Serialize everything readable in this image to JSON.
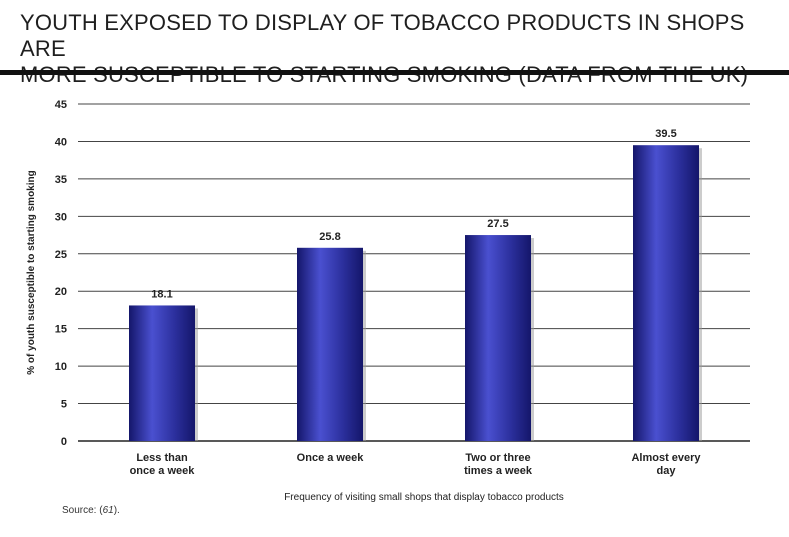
{
  "title_line1": "YOUTH EXPOSED TO DISPLAY OF TOBACCO PRODUCTS IN SHOPS ARE",
  "title_line2": "MORE SUSCEPTIBLE TO STARTING SMOKING (DATA FROM THE UK)",
  "source_prefix": "Source: (",
  "source_ref": "61",
  "source_suffix": ").",
  "chart_data": {
    "type": "bar",
    "categories": [
      [
        "Less than",
        "once a week"
      ],
      [
        "Once a week"
      ],
      [
        "Two or three",
        "times a week"
      ],
      [
        "Almost every",
        "day"
      ]
    ],
    "values": [
      18.1,
      25.8,
      27.5,
      39.5
    ],
    "value_labels": [
      "18.1",
      "25.8",
      "27.5",
      "39.5"
    ],
    "ylabel": "% of youth susceptible to starting smoking",
    "xlabel": "Frequency of visiting small shops that display tobacco products",
    "ylim": [
      0,
      45
    ],
    "yticks": [
      0,
      5,
      10,
      15,
      20,
      25,
      30,
      35,
      40,
      45
    ],
    "grid": true,
    "bar_color": "#2b2f9c",
    "bar_highlight": "#4a50d0",
    "bar_shadow": "#14166a"
  }
}
